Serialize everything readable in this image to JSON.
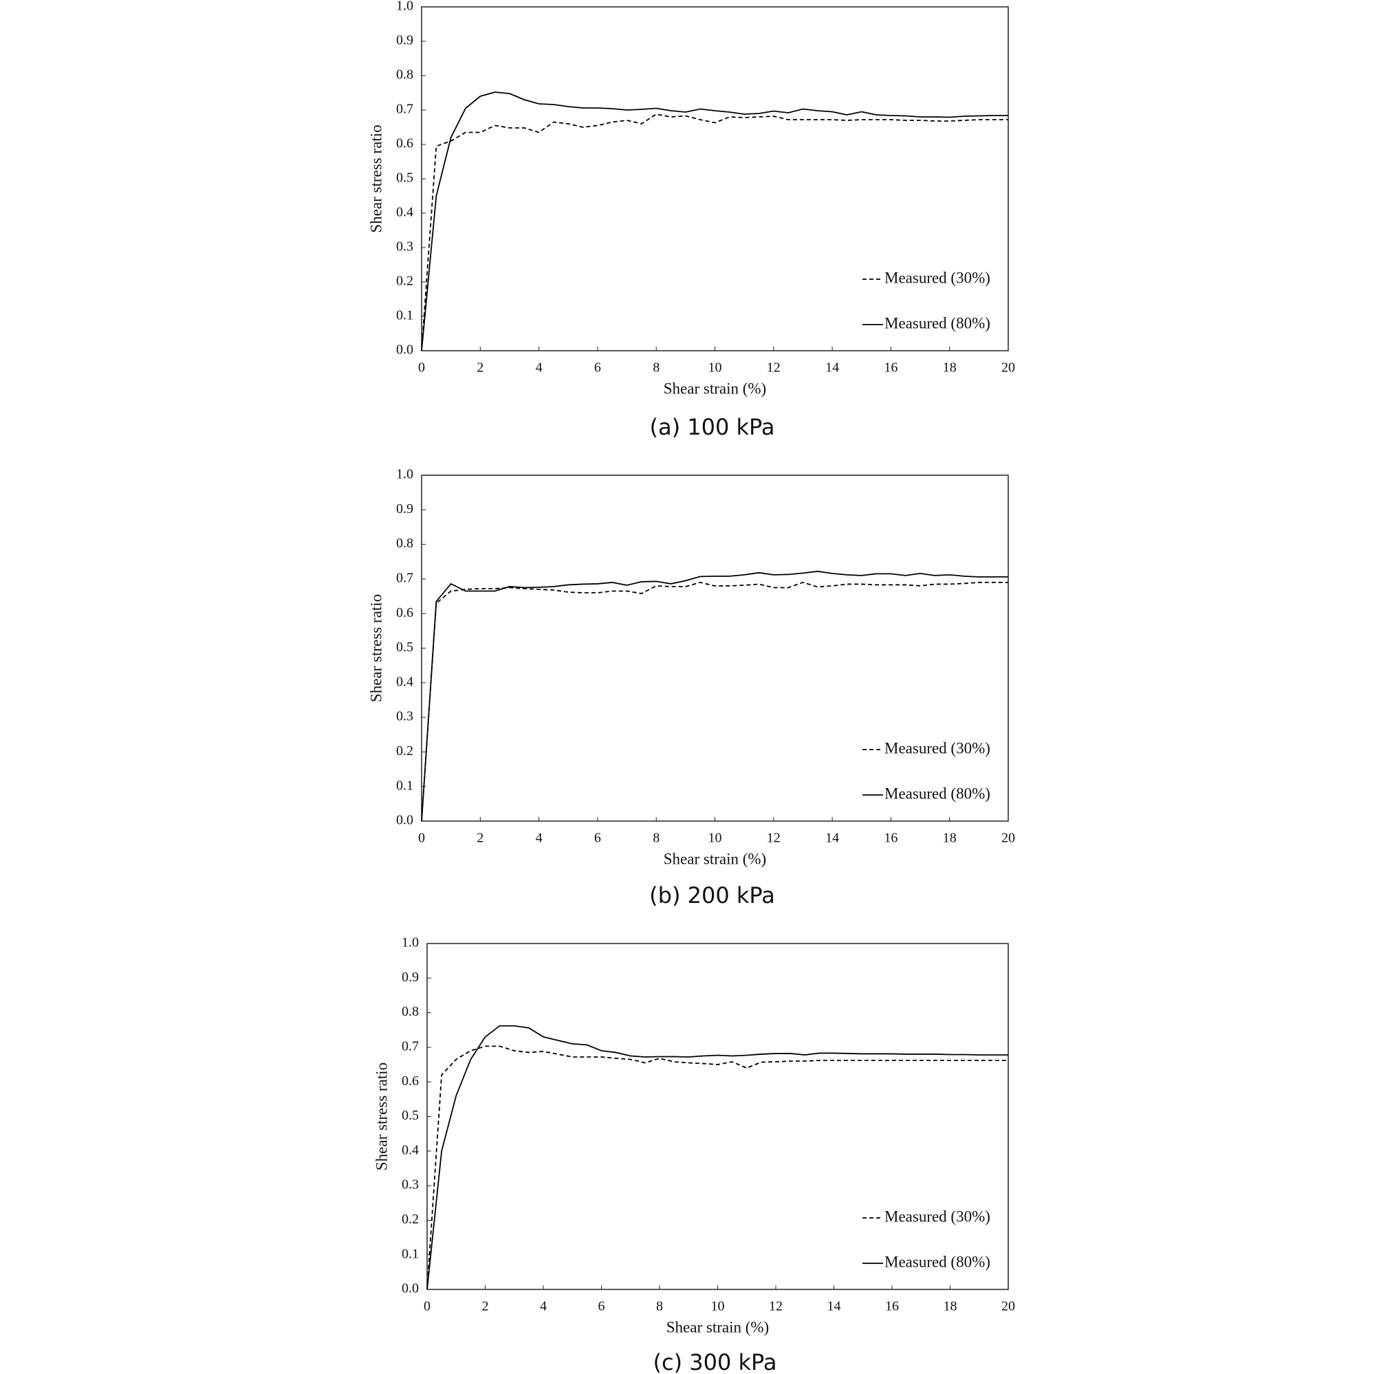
{
  "chart_data": [
    {
      "type": "line",
      "caption": "(a) 100 kPa",
      "x_label": "Shear strain (%)",
      "y_label": "Shear stress ratio",
      "x": [
        0,
        0.5,
        1,
        1.5,
        2,
        2.5,
        3,
        3.5,
        4,
        4.5,
        5,
        5.5,
        6,
        6.5,
        7,
        7.5,
        8,
        8.5,
        9,
        9.5,
        10,
        10.5,
        11,
        11.5,
        12,
        12.5,
        13,
        13.5,
        14,
        14.5,
        15,
        15.5,
        16,
        16.5,
        17,
        17.5,
        18,
        18.5,
        19,
        19.5,
        20
      ],
      "series": [
        {
          "name": "Measured (30%)",
          "color": "#000000",
          "dash": "dashed",
          "values": [
            0,
            0.595,
            0.61,
            0.635,
            0.635,
            0.655,
            0.648,
            0.648,
            0.635,
            0.665,
            0.66,
            0.65,
            0.655,
            0.665,
            0.67,
            0.66,
            0.688,
            0.68,
            0.683,
            0.672,
            0.663,
            0.68,
            0.678,
            0.68,
            0.682,
            0.672,
            0.672,
            0.672,
            0.672,
            0.67,
            0.672,
            0.672,
            0.672,
            0.67,
            0.67,
            0.668,
            0.668,
            0.67,
            0.672,
            0.672,
            0.672
          ]
        },
        {
          "name": "Measured (80%)",
          "color": "#000000",
          "dash": "solid",
          "values": [
            0,
            0.45,
            0.62,
            0.705,
            0.74,
            0.752,
            0.748,
            0.73,
            0.718,
            0.716,
            0.71,
            0.706,
            0.706,
            0.704,
            0.7,
            0.702,
            0.705,
            0.698,
            0.694,
            0.703,
            0.698,
            0.694,
            0.688,
            0.69,
            0.697,
            0.692,
            0.703,
            0.698,
            0.695,
            0.686,
            0.695,
            0.686,
            0.684,
            0.683,
            0.68,
            0.68,
            0.679,
            0.682,
            0.683,
            0.684,
            0.684
          ]
        }
      ],
      "xlim": [
        0,
        20
      ],
      "ylim": [
        0,
        1
      ],
      "xticks": [
        0,
        2,
        4,
        6,
        8,
        10,
        12,
        14,
        16,
        18,
        20
      ],
      "yticks": [
        {
          "value": 0,
          "label": "0.0"
        },
        {
          "value": 0.1,
          "label": "0.1"
        },
        {
          "value": 0.2,
          "label": "0.2"
        },
        {
          "value": 0.3,
          "label": "0.3"
        },
        {
          "value": 0.4,
          "label": "0.4"
        },
        {
          "value": 0.5,
          "label": "0.5"
        },
        {
          "value": 0.6,
          "label": "0.6"
        },
        {
          "value": 0.7,
          "label": "0.7"
        },
        {
          "value": 0.8,
          "label": "0.8"
        },
        {
          "value": 0.9,
          "label": "0.9"
        },
        {
          "value": 1,
          "label": "1.0"
        }
      ],
      "grid": false,
      "legend": "lower right"
    },
    {
      "type": "line",
      "caption": "(b) 200 kPa",
      "x_label": "Shear strain (%)",
      "y_label": "Shear stress ratio",
      "x": [
        0,
        0.5,
        1,
        1.5,
        2,
        2.5,
        3,
        3.5,
        4,
        4.5,
        5,
        5.5,
        6,
        6.5,
        7,
        7.5,
        8,
        8.5,
        9,
        9.5,
        10,
        10.5,
        11,
        11.5,
        12,
        12.5,
        13,
        13.5,
        14,
        14.5,
        15,
        15.5,
        16,
        16.5,
        17,
        17.5,
        18,
        18.5,
        19,
        19.5,
        20
      ],
      "series": [
        {
          "name": "Measured (30%)",
          "color": "#000000",
          "dash": "dashed",
          "values": [
            0,
            0.63,
            0.665,
            0.67,
            0.672,
            0.672,
            0.675,
            0.672,
            0.67,
            0.668,
            0.662,
            0.66,
            0.66,
            0.665,
            0.665,
            0.658,
            0.68,
            0.678,
            0.678,
            0.69,
            0.68,
            0.68,
            0.682,
            0.685,
            0.675,
            0.675,
            0.69,
            0.677,
            0.68,
            0.685,
            0.685,
            0.683,
            0.683,
            0.683,
            0.68,
            0.685,
            0.685,
            0.687,
            0.69,
            0.69,
            0.69
          ]
        },
        {
          "name": "Measured (80%)",
          "color": "#000000",
          "dash": "solid",
          "values": [
            0,
            0.635,
            0.686,
            0.665,
            0.665,
            0.665,
            0.678,
            0.675,
            0.676,
            0.678,
            0.683,
            0.685,
            0.686,
            0.69,
            0.682,
            0.692,
            0.693,
            0.686,
            0.695,
            0.707,
            0.708,
            0.708,
            0.712,
            0.718,
            0.712,
            0.713,
            0.717,
            0.722,
            0.716,
            0.712,
            0.71,
            0.715,
            0.715,
            0.71,
            0.716,
            0.71,
            0.712,
            0.708,
            0.706,
            0.706,
            0.706
          ]
        }
      ],
      "xlim": [
        0,
        20
      ],
      "ylim": [
        0,
        1
      ],
      "xticks": [
        0,
        2,
        4,
        6,
        8,
        10,
        12,
        14,
        16,
        18,
        20
      ],
      "yticks": [
        {
          "value": 0,
          "label": "0.0"
        },
        {
          "value": 0.1,
          "label": "0.1"
        },
        {
          "value": 0.2,
          "label": "0.2"
        },
        {
          "value": 0.3,
          "label": "0.3"
        },
        {
          "value": 0.4,
          "label": "0.4"
        },
        {
          "value": 0.5,
          "label": "0.5"
        },
        {
          "value": 0.6,
          "label": "0.6"
        },
        {
          "value": 0.7,
          "label": "0.7"
        },
        {
          "value": 0.8,
          "label": "0.8"
        },
        {
          "value": 0.9,
          "label": "0.9"
        },
        {
          "value": 1,
          "label": "1.0"
        }
      ],
      "grid": false,
      "legend": "lower right"
    },
    {
      "type": "line",
      "caption": "(c) 300 kPa",
      "x_label": "Shear strain (%)",
      "y_label": "Shear stress ratio",
      "x": [
        0,
        0.5,
        1,
        1.5,
        2,
        2.5,
        3,
        3.5,
        4,
        4.5,
        5,
        5.5,
        6,
        6.5,
        7,
        7.5,
        8,
        8.5,
        9,
        9.5,
        10,
        10.5,
        11,
        11.5,
        12,
        12.5,
        13,
        13.5,
        14,
        14.5,
        15,
        15.5,
        16,
        16.5,
        17,
        17.5,
        18,
        18.5,
        19,
        19.5,
        20
      ],
      "series": [
        {
          "name": "Measured (30%)",
          "color": "#000000",
          "dash": "dashed",
          "values": [
            0,
            0.62,
            0.665,
            0.69,
            0.703,
            0.703,
            0.69,
            0.685,
            0.688,
            0.68,
            0.672,
            0.672,
            0.672,
            0.668,
            0.665,
            0.655,
            0.668,
            0.658,
            0.655,
            0.653,
            0.65,
            0.658,
            0.64,
            0.657,
            0.658,
            0.66,
            0.66,
            0.662,
            0.662,
            0.662,
            0.662,
            0.662,
            0.662,
            0.662,
            0.662,
            0.662,
            0.662,
            0.662,
            0.662,
            0.662,
            0.662
          ]
        },
        {
          "name": "Measured (80%)",
          "color": "#000000",
          "dash": "solid",
          "values": [
            0,
            0.4,
            0.56,
            0.665,
            0.73,
            0.762,
            0.762,
            0.756,
            0.73,
            0.72,
            0.71,
            0.707,
            0.69,
            0.685,
            0.675,
            0.672,
            0.673,
            0.673,
            0.672,
            0.675,
            0.677,
            0.675,
            0.677,
            0.68,
            0.682,
            0.682,
            0.678,
            0.683,
            0.683,
            0.682,
            0.681,
            0.681,
            0.681,
            0.68,
            0.68,
            0.68,
            0.679,
            0.679,
            0.678,
            0.678,
            0.678
          ]
        }
      ],
      "xlim": [
        0,
        20
      ],
      "ylim": [
        0,
        1
      ],
      "xticks": [
        0,
        2,
        4,
        6,
        8,
        10,
        12,
        14,
        16,
        18,
        20
      ],
      "yticks": [
        {
          "value": 0,
          "label": "0.0"
        },
        {
          "value": 0.1,
          "label": "0.1"
        },
        {
          "value": 0.2,
          "label": "0.2"
        },
        {
          "value": 0.3,
          "label": "0.3"
        },
        {
          "value": 0.4,
          "label": "0.4"
        },
        {
          "value": 0.5,
          "label": "0.5"
        },
        {
          "value": 0.6,
          "label": "0.6"
        },
        {
          "value": 0.7,
          "label": "0.7"
        },
        {
          "value": 0.8,
          "label": "0.8"
        },
        {
          "value": 0.9,
          "label": "0.9"
        },
        {
          "value": 1,
          "label": "1.0"
        }
      ],
      "grid": false,
      "legend": "lower right"
    }
  ]
}
